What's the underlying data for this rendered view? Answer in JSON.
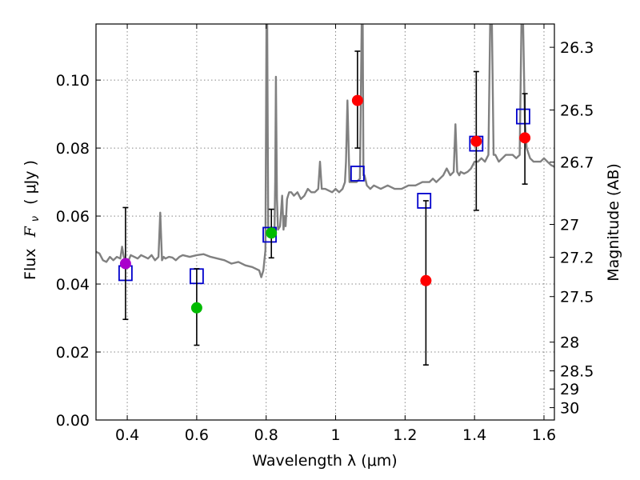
{
  "chart_data": {
    "type": "scatter",
    "xlabel": "Wavelength  λ (μm)",
    "ylabel_text": "Flux",
    "ylabel_math": "F",
    "ylabel_sub": "ν",
    "ylabel_unit": "( μJy )",
    "ylabel_right": "Magnitude (AB)",
    "xlim": [
      0.31,
      1.63
    ],
    "ylim": [
      0.0,
      0.1165
    ],
    "grid": true,
    "x_ticks": [
      0.4,
      0.6,
      0.8,
      1.0,
      1.2,
      1.4,
      1.6
    ],
    "x_tick_labels": [
      "0.4",
      "0.6",
      "0.8",
      "1",
      "1.2",
      "1.4",
      "1.6"
    ],
    "y_ticks": [
      0.0,
      0.02,
      0.04,
      0.06,
      0.08,
      0.1
    ],
    "y_tick_labels": [
      "0.00",
      "0.02",
      "0.04",
      "0.06",
      "0.08",
      "0.10"
    ],
    "right_ticks": [
      26.3,
      26.5,
      26.7,
      27,
      27.2,
      27.5,
      28,
      28.5,
      29,
      30
    ],
    "right_tick_labels": [
      "26.3",
      "26.5",
      "26.7",
      "27",
      "27.2",
      "27.5",
      "28",
      "28.5",
      "29",
      "30"
    ],
    "colors": {
      "spectrum": "#808080",
      "model_box": "#0000cc",
      "error_bar": "#000000",
      "grid": "#888888"
    },
    "spectrum": {
      "name": "",
      "x": [
        0.31,
        0.32,
        0.33,
        0.34,
        0.35,
        0.36,
        0.37,
        0.38,
        0.385,
        0.39,
        0.4,
        0.41,
        0.42,
        0.43,
        0.44,
        0.45,
        0.46,
        0.47,
        0.48,
        0.49,
        0.495,
        0.5,
        0.505,
        0.51,
        0.52,
        0.53,
        0.54,
        0.55,
        0.56,
        0.58,
        0.6,
        0.62,
        0.64,
        0.66,
        0.68,
        0.7,
        0.72,
        0.74,
        0.76,
        0.78,
        0.786,
        0.792,
        0.798,
        0.801,
        0.803,
        0.806,
        0.812,
        0.818,
        0.824,
        0.826,
        0.828,
        0.831,
        0.834,
        0.84,
        0.846,
        0.85,
        0.853,
        0.856,
        0.86,
        0.866,
        0.872,
        0.88,
        0.89,
        0.9,
        0.91,
        0.92,
        0.93,
        0.94,
        0.95,
        0.955,
        0.96,
        0.97,
        0.98,
        0.99,
        1.0,
        1.01,
        1.02,
        1.027,
        1.03,
        1.034,
        1.04,
        1.06,
        1.07,
        1.075,
        1.078,
        1.08,
        1.083,
        1.09,
        1.1,
        1.11,
        1.12,
        1.13,
        1.15,
        1.17,
        1.19,
        1.21,
        1.23,
        1.25,
        1.27,
        1.28,
        1.29,
        1.3,
        1.31,
        1.32,
        1.33,
        1.34,
        1.345,
        1.35,
        1.356,
        1.36,
        1.37,
        1.38,
        1.39,
        1.4,
        1.41,
        1.42,
        1.43,
        1.44,
        1.445,
        1.45,
        1.455,
        1.46,
        1.47,
        1.48,
        1.49,
        1.5,
        1.51,
        1.52,
        1.53,
        1.535,
        1.54,
        1.545,
        1.55,
        1.56,
        1.57,
        1.58,
        1.59,
        1.6,
        1.61,
        1.62,
        1.63
      ],
      "y": [
        0.0495,
        0.049,
        0.047,
        0.0465,
        0.048,
        0.047,
        0.048,
        0.0475,
        0.051,
        0.048,
        0.046,
        0.0485,
        0.048,
        0.0475,
        0.0485,
        0.048,
        0.0475,
        0.0485,
        0.047,
        0.048,
        0.061,
        0.047,
        0.048,
        0.0475,
        0.048,
        0.0478,
        0.047,
        0.048,
        0.0485,
        0.048,
        0.0485,
        0.0488,
        0.048,
        0.0475,
        0.047,
        0.046,
        0.0465,
        0.0455,
        0.045,
        0.044,
        0.042,
        0.044,
        0.05,
        0.1165,
        0.1165,
        0.056,
        0.055,
        0.0565,
        0.055,
        0.07,
        0.101,
        0.065,
        0.056,
        0.057,
        0.066,
        0.056,
        0.06,
        0.057,
        0.065,
        0.067,
        0.067,
        0.066,
        0.067,
        0.065,
        0.066,
        0.068,
        0.067,
        0.067,
        0.068,
        0.076,
        0.068,
        0.068,
        0.0675,
        0.067,
        0.068,
        0.067,
        0.068,
        0.07,
        0.076,
        0.094,
        0.07,
        0.07,
        0.071,
        0.1165,
        0.1165,
        0.072,
        0.072,
        0.069,
        0.068,
        0.069,
        0.0685,
        0.068,
        0.069,
        0.068,
        0.068,
        0.069,
        0.069,
        0.07,
        0.07,
        0.071,
        0.07,
        0.071,
        0.072,
        0.074,
        0.072,
        0.073,
        0.087,
        0.073,
        0.072,
        0.073,
        0.0725,
        0.073,
        0.074,
        0.076,
        0.076,
        0.077,
        0.076,
        0.078,
        0.1165,
        0.1165,
        0.078,
        0.078,
        0.076,
        0.077,
        0.078,
        0.078,
        0.078,
        0.077,
        0.078,
        0.1165,
        0.1165,
        0.088,
        0.08,
        0.077,
        0.076,
        0.076,
        0.076,
        0.077,
        0.076,
        0.075,
        0.0745
      ]
    },
    "model_photometry": {
      "name": "",
      "x": [
        0.395,
        0.6,
        0.81,
        1.063,
        1.255,
        1.405,
        1.54
      ],
      "y": [
        0.0432,
        0.0423,
        0.0545,
        0.0725,
        0.0645,
        0.0813,
        0.0893
      ]
    },
    "observed": [
      {
        "x": 0.395,
        "y": 0.046,
        "yerr_low": 0.0296,
        "yerr_high": 0.0625,
        "color": "#aa00cc"
      },
      {
        "x": 0.6,
        "y": 0.033,
        "yerr_low": 0.022,
        "yerr_high": 0.0445,
        "color": "#00bb00"
      },
      {
        "x": 0.815,
        "y": 0.055,
        "yerr_low": 0.0477,
        "yerr_high": 0.062,
        "color": "#00bb00"
      },
      {
        "x": 1.063,
        "y": 0.094,
        "yerr_low": 0.08,
        "yerr_high": 0.1085,
        "color": "#ff0000"
      },
      {
        "x": 1.26,
        "y": 0.041,
        "yerr_low": 0.0162,
        "yerr_high": 0.0645,
        "color": "#ff0000"
      },
      {
        "x": 1.405,
        "y": 0.082,
        "yerr_low": 0.0617,
        "yerr_high": 0.1025,
        "color": "#ff0000"
      },
      {
        "x": 1.545,
        "y": 0.083,
        "yerr_low": 0.0694,
        "yerr_high": 0.096,
        "color": "#ff0000"
      }
    ]
  }
}
